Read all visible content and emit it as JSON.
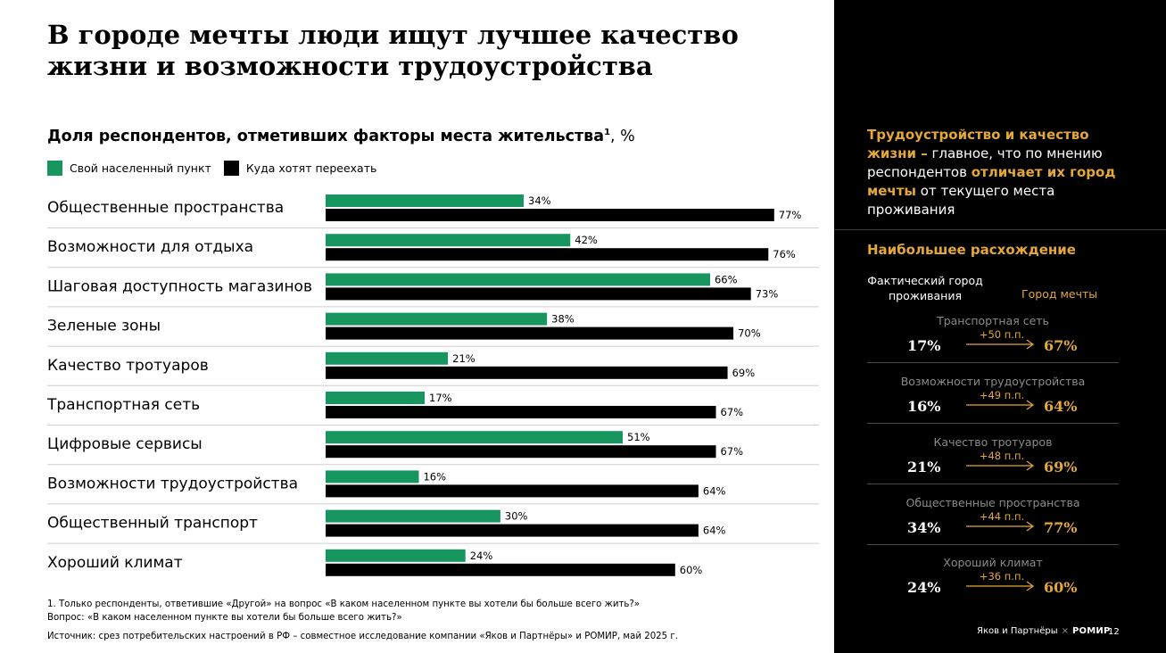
{
  "title": "В городе мечты люди ищут лучшее качество жизни и возможности трудоустройства",
  "subtitle": {
    "text": "Доля респондентов, отметивших факторы места жительства",
    "footnote_mark": "1",
    "unit": ", %"
  },
  "colors": {
    "green": "#17975f",
    "black": "#000000",
    "gold": "#e3a73a"
  },
  "chart_data": {
    "type": "bar",
    "orientation": "horizontal",
    "title": "Доля респондентов, отметивших факторы места жительства, %",
    "xlim": [
      0,
      100
    ],
    "categories": [
      "Общественные пространства",
      "Возможности для отдыха",
      "Шаговая доступность магазинов",
      "Зеленые зоны",
      "Качество тротуаров",
      "Транспортная сеть",
      "Цифровые сервисы",
      "Возможности трудоустройства",
      "Общественный транспорт",
      "Хороший климат"
    ],
    "series": [
      {
        "name": "Свой населенный пункт",
        "color": "#17975f",
        "values": [
          34,
          42,
          66,
          38,
          21,
          17,
          51,
          16,
          30,
          24
        ]
      },
      {
        "name": "Куда хотят переехать",
        "color": "#000000",
        "values": [
          77,
          76,
          73,
          70,
          69,
          67,
          67,
          64,
          64,
          60
        ]
      }
    ],
    "value_suffix": "%"
  },
  "footnotes": {
    "note1": "1.   Только респонденты, ответившие «Другой» на вопрос «В каком населенном пункте вы хотели бы больше всего жить?»",
    "question": "Вопрос: «В каком населенном пункте вы хотели бы больше всего жить?»",
    "source": "Источник: срез потребительских настроений в РФ – совместное исследование компании «Яков и Партнёры» и РОМИР, май 2025 г."
  },
  "sidebar": {
    "callout": {
      "part1": "Трудоустройство и качество жизни –",
      "part2": " главное, что по мнению респондентов ",
      "part3": "отличает их город мечты",
      "part4": " от  текущего места проживания"
    },
    "gap_title": "Наибольшее расхождение",
    "col_actual": "Фактический город проживания",
    "col_dream": "Город мечты",
    "gaps": [
      {
        "name": "Транспортная сеть",
        "from": "17%",
        "diff": "+50 п.п.",
        "to": "67%"
      },
      {
        "name": "Возможности трудоустройства",
        "from": "16%",
        "diff": "+49 п.п.",
        "to": "64%"
      },
      {
        "name": "Качество тротуаров",
        "from": "21%",
        "diff": "+48 п.п.",
        "to": "69%"
      },
      {
        "name": "Общественные пространства",
        "from": "34%",
        "diff": "+44 п.п.",
        "to": "77%"
      },
      {
        "name": "Хороший климат",
        "from": "24%",
        "diff": "+36 п.п.",
        "to": "60%"
      }
    ],
    "brand_yakov": "Яков и Партнёры",
    "brand_x": "×",
    "brand_romir": "РОМИР",
    "page_number": "12"
  }
}
